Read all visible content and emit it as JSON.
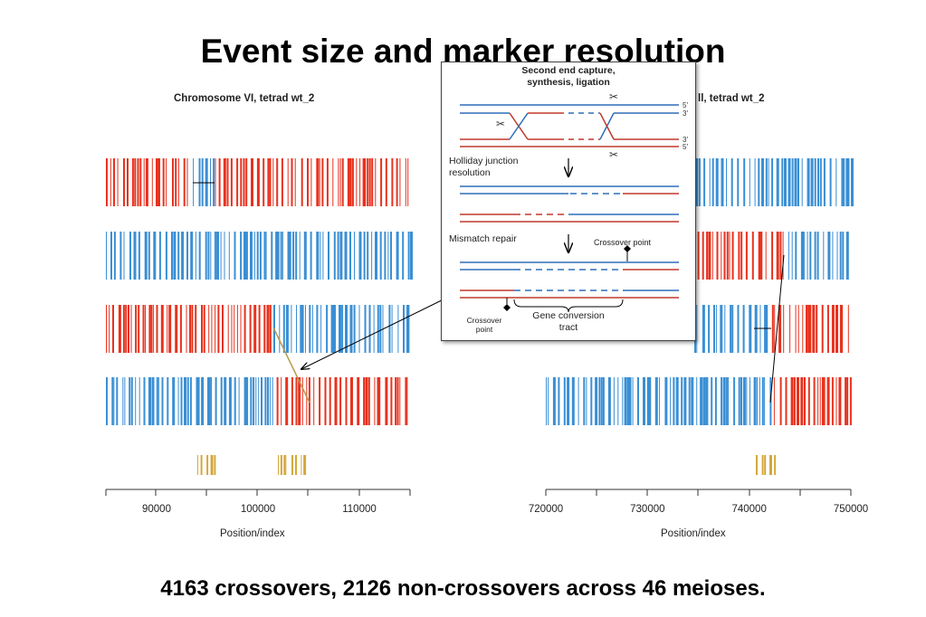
{
  "slide_title": "Event size and marker resolution",
  "caption": "4163 crossovers, 2126 non-crossovers across 46 meioses.",
  "colors": {
    "red": "#e8321e",
    "blue": "#3a8fd4",
    "gold": "#d4a83c",
    "inset_red": "#c0392b",
    "inset_blue": "#2e6fb8"
  },
  "left_panel": {
    "title": "Chromosome VI, tetrad wt_2",
    "xlabel": "Position/index",
    "ticks": [
      90000,
      100000,
      110000
    ]
  },
  "right_panel": {
    "title": "ll, tetrad wt_2",
    "xlabel": "Position/index",
    "ticks": [
      720000,
      730000,
      740000,
      750000
    ]
  },
  "inset": {
    "step1": "Second end capture,",
    "step1b": "synthesis, ligation",
    "step2": "Holliday junction",
    "step2b": "resolution",
    "step3": "Mismatch repair",
    "crossover_point_right": "Crossover point",
    "crossover_point_left": "Crossover",
    "crossover_point_left_b": "point",
    "gene_conversion": "Gene conversion",
    "gene_conversion_b": "tract",
    "end5_top": "5′",
    "end3_top": "3′",
    "end3_bottom": "3′",
    "end5_bottom": "5′"
  }
}
